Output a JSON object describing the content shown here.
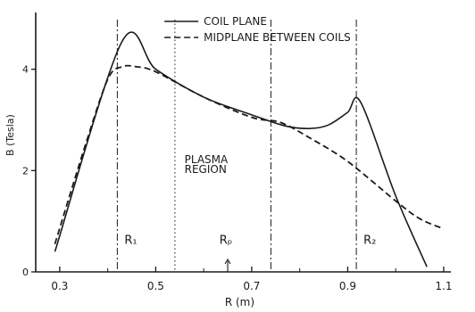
{
  "chart_data": {
    "type": "line",
    "xlabel": "R (m)",
    "ylabel": "B (Tesla)",
    "xlim": [
      0.25,
      1.115
    ],
    "ylim": [
      0,
      5.05
    ],
    "x_ticks": [
      {
        "value": 0.3,
        "label": "0.3"
      },
      {
        "value": 0.5,
        "label": "0.5"
      },
      {
        "value": 0.7,
        "label": "0.7"
      },
      {
        "value": 0.9,
        "label": "0.9"
      },
      {
        "value": 1.1,
        "label": "1.1"
      }
    ],
    "y_ticks": [
      {
        "value": 0,
        "label": "0"
      },
      {
        "value": 2,
        "label": "2"
      },
      {
        "value": 4,
        "label": "4"
      }
    ],
    "series": [
      {
        "name": "COIL PLANE",
        "style": "solid",
        "points": [
          [
            0.29,
            0.4
          ],
          [
            0.43,
            4.55
          ],
          [
            0.5,
            4.0
          ],
          [
            0.6,
            3.45
          ],
          [
            0.7,
            3.1
          ],
          [
            0.77,
            2.88
          ],
          [
            0.82,
            2.83
          ],
          [
            0.86,
            2.9
          ],
          [
            0.9,
            3.15
          ],
          [
            0.927,
            3.35
          ],
          [
            1.0,
            1.5
          ],
          [
            1.065,
            0.1
          ]
        ]
      },
      {
        "name": "MIDPLANE BETWEEN COILS",
        "style": "dashed",
        "points": [
          [
            0.29,
            0.55
          ],
          [
            0.35,
            2.4
          ],
          [
            0.4,
            3.8
          ],
          [
            0.43,
            4.05
          ],
          [
            0.46,
            4.05
          ],
          [
            0.5,
            3.95
          ],
          [
            0.6,
            3.45
          ],
          [
            0.7,
            3.05
          ],
          [
            0.76,
            2.95
          ],
          [
            0.82,
            2.65
          ],
          [
            0.9,
            2.18
          ],
          [
            1.0,
            1.4
          ],
          [
            1.05,
            1.05
          ],
          [
            1.1,
            0.85
          ]
        ]
      }
    ],
    "vertical_markers": [
      {
        "x": 0.42,
        "style": "dashdot",
        "label": "R₁"
      },
      {
        "x": 0.54,
        "style": "dotted",
        "label": ""
      },
      {
        "x": 0.74,
        "style": "dashdot",
        "label": ""
      },
      {
        "x": 0.918,
        "style": "dashdot",
        "label": "R₂"
      }
    ],
    "rp_marker": {
      "x": 0.65,
      "label": "Rₚ"
    },
    "annotations": [
      {
        "text": "PLASMA",
        "x": 0.56,
        "y": 2.15
      },
      {
        "text": "REGION",
        "x": 0.56,
        "y": 1.95
      }
    ],
    "legend_position": "top-right"
  }
}
